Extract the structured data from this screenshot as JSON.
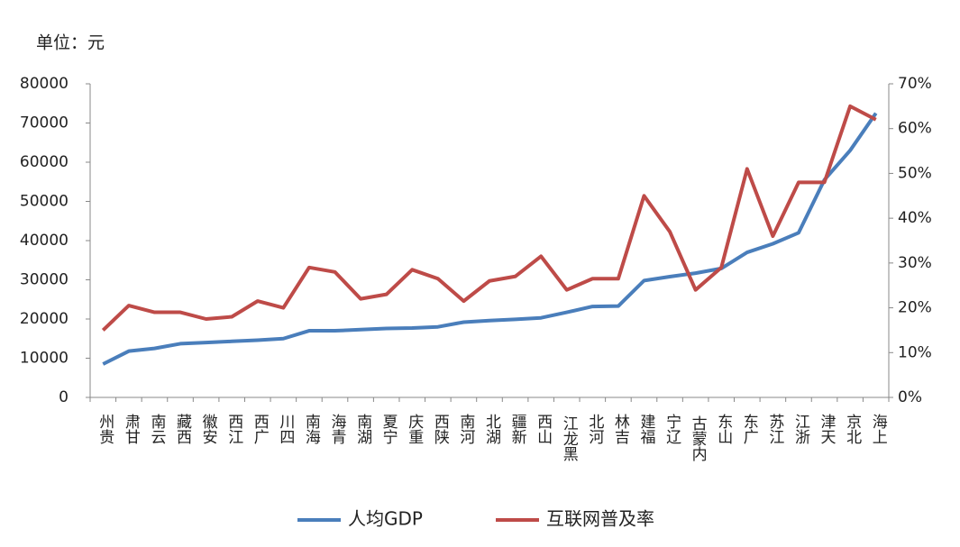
{
  "chart_data": {
    "type": "line",
    "unit_label": "单位：元",
    "categories": [
      "贵州",
      "甘肃",
      "云南",
      "西藏",
      "安徽",
      "江西",
      "广西",
      "四川",
      "海南",
      "青海",
      "湖南",
      "宁夏",
      "重庆",
      "陕西",
      "河南",
      "湖北",
      "新疆",
      "山西",
      "黑龙江",
      "河北",
      "吉林",
      "福建",
      "辽宁",
      "内蒙古",
      "山东",
      "广东",
      "江苏",
      "浙江",
      "天津",
      "北京",
      "上海"
    ],
    "series": [
      {
        "name": "人均GDP",
        "color": "#4a7ebb",
        "values": [
          8500,
          11800,
          12500,
          13700,
          14000,
          14300,
          14600,
          15000,
          17000,
          17000,
          17300,
          17600,
          17700,
          18000,
          19200,
          19600,
          19900,
          20300,
          21700,
          23200,
          23300,
          29800,
          30800,
          31700,
          32900,
          37000,
          39200,
          42000,
          55500,
          63000,
          72500
        ]
      },
      {
        "name": "互联网普及率",
        "color": "#be4b48",
        "axis": "y2",
        "values": [
          15,
          20.5,
          19,
          19,
          17.5,
          18,
          21.5,
          20,
          29,
          28,
          22,
          23,
          28.5,
          26.5,
          21.5,
          26,
          27,
          31.5,
          24,
          26.5,
          26.5,
          45,
          37,
          24,
          29,
          51,
          36,
          48,
          48,
          65,
          62
        ]
      }
    ],
    "ylim": [
      0,
      80000
    ],
    "yticks": [
      0,
      10000,
      20000,
      30000,
      40000,
      50000,
      60000,
      70000,
      80000
    ],
    "y2lim": [
      0,
      70
    ],
    "y2ticks": [
      {
        "value": 0,
        "label": "0%"
      },
      {
        "value": 10,
        "label": "10%"
      },
      {
        "value": 20,
        "label": "20%"
      },
      {
        "value": 30,
        "label": "30%"
      },
      {
        "value": 40,
        "label": "40%"
      },
      {
        "value": 50,
        "label": "50%"
      },
      {
        "value": 60,
        "label": "60%"
      },
      {
        "value": 70,
        "label": "70%"
      }
    ],
    "legend": "bottom"
  }
}
